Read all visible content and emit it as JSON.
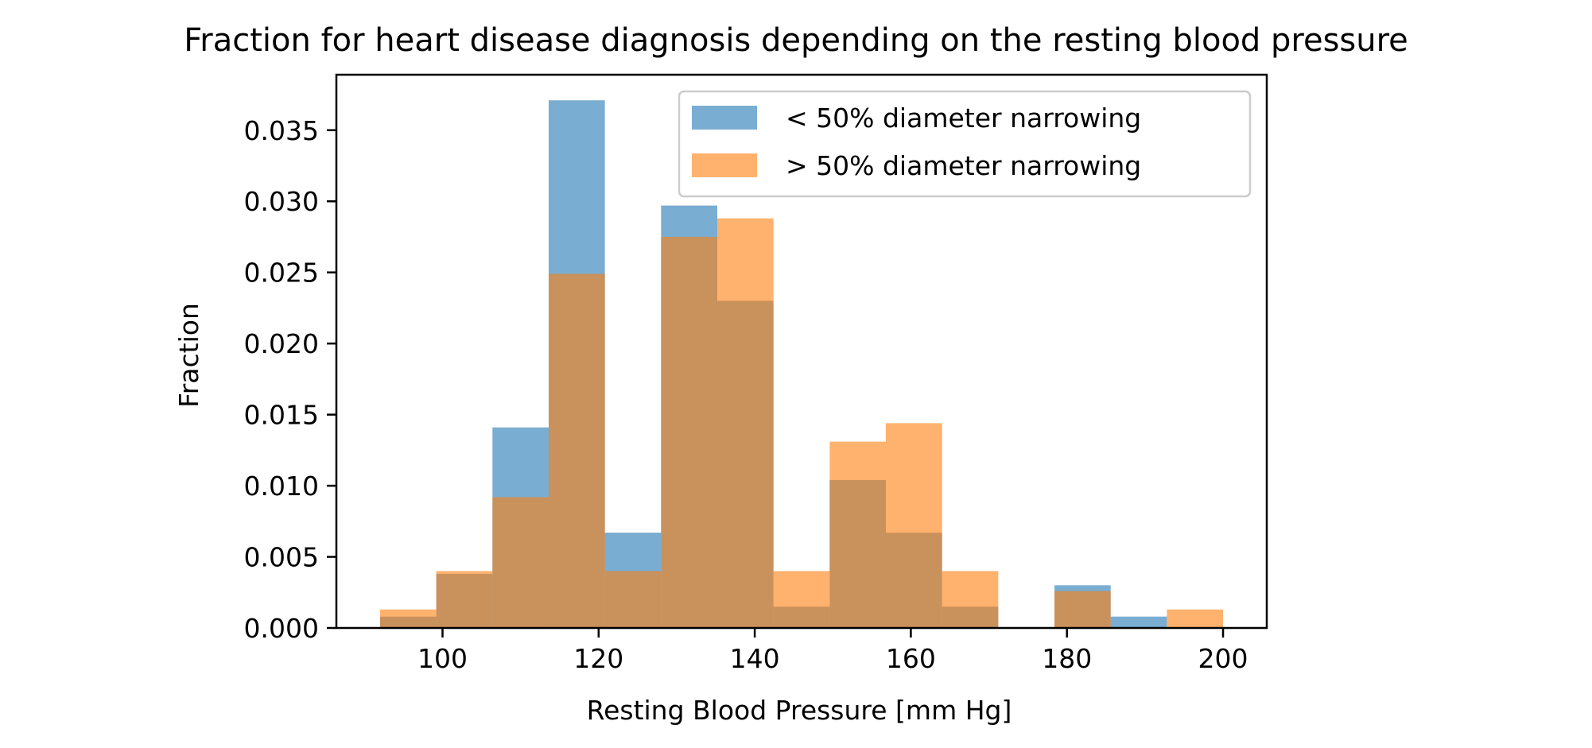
{
  "chart_data": {
    "type": "bar",
    "title": "Fraction for heart disease diagnosis depending on the resting blood pressure",
    "xlabel": "Resting Blood Pressure [mm Hg]",
    "ylabel": "Fraction",
    "xlim": [
      86.4,
      205.6
    ],
    "ylim": [
      0,
      0.0389
    ],
    "xticks": [
      100,
      120,
      140,
      160,
      180,
      200
    ],
    "xtick_labels": [
      "100",
      "120",
      "140",
      "160",
      "180",
      "200"
    ],
    "yticks": [
      0.0,
      0.005,
      0.01,
      0.015,
      0.02,
      0.025,
      0.03,
      0.035
    ],
    "ytick_labels": [
      "0.000",
      "0.005",
      "0.010",
      "0.015",
      "0.020",
      "0.025",
      "0.030",
      "0.035"
    ],
    "bin_edges": [
      92.0,
      99.2,
      106.4,
      113.6,
      120.8,
      128.0,
      135.2,
      142.4,
      149.6,
      156.8,
      164.0,
      171.2,
      178.4,
      185.6,
      192.8,
      200.0
    ],
    "grid": false,
    "legend_position": "top-right",
    "series": [
      {
        "name": "< 50% diameter narrowing",
        "color": "#1f77b4",
        "alpha": 0.6,
        "values": [
          0.0008,
          0.0038,
          0.0141,
          0.0371,
          0.0067,
          0.0297,
          0.023,
          0.0015,
          0.0104,
          0.0067,
          0.0015,
          0.0,
          0.003,
          0.0008,
          0.0
        ]
      },
      {
        "name": "> 50% diameter narrowing",
        "color": "#ff7f0e",
        "alpha": 0.6,
        "values": [
          0.0013,
          0.004,
          0.0092,
          0.0249,
          0.004,
          0.0275,
          0.0288,
          0.004,
          0.0131,
          0.0144,
          0.004,
          0.0,
          0.0026,
          0.0,
          0.0013
        ]
      }
    ]
  }
}
